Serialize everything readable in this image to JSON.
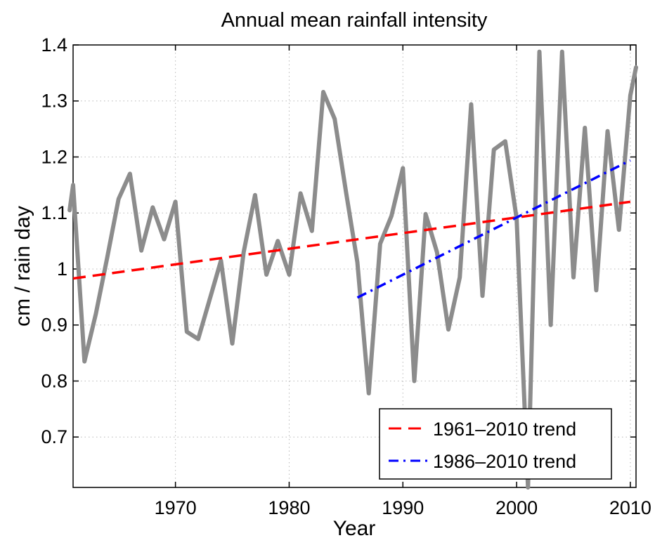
{
  "chart_data": {
    "type": "line",
    "title": "Annual mean rainfall intensity",
    "xlabel": "Year",
    "ylabel": "cm / rain day",
    "xlim": [
      1961,
      2010.5
    ],
    "ylim": [
      0.61,
      1.4
    ],
    "xticks": [
      "1970",
      "1980",
      "1990",
      "2000",
      "2010"
    ],
    "yticks": [
      "0.7",
      "0.8",
      "0.9",
      "1",
      "1.1",
      "1.2",
      "1.3",
      "1.4"
    ],
    "grid": true,
    "legend_position": "bottom-right",
    "series": [
      {
        "color": "#8c8c8c",
        "style": "solid",
        "x": [
          1960.7,
          1961,
          1962,
          1963,
          1964,
          1965,
          1966,
          1967,
          1968,
          1969,
          1970,
          1971,
          1972,
          1973,
          1974,
          1975,
          1976,
          1977,
          1978,
          1979,
          1980,
          1981,
          1982,
          1983,
          1984,
          1985,
          1986,
          1987,
          1988,
          1989,
          1990,
          1991,
          1992,
          1993,
          1994,
          1995,
          1996,
          1997,
          1998,
          1999,
          2000,
          2001,
          2002,
          2003,
          2004,
          2005,
          2006,
          2007,
          2008,
          2009,
          2010,
          2010.5
        ],
        "y": [
          1.105,
          1.15,
          0.835,
          0.92,
          1.02,
          1.125,
          1.17,
          1.033,
          1.11,
          1.053,
          1.12,
          0.888,
          0.875,
          0.945,
          1.015,
          0.867,
          1.03,
          1.132,
          0.99,
          1.05,
          0.99,
          1.135,
          1.068,
          1.316,
          1.268,
          1.137,
          1.012,
          0.778,
          1.045,
          1.095,
          1.18,
          0.8,
          1.098,
          1.03,
          0.892,
          0.985,
          1.294,
          0.952,
          1.213,
          1.228,
          1.09,
          0.61,
          1.388,
          0.9,
          1.388,
          0.985,
          1.252,
          0.962,
          1.246,
          1.07,
          1.31,
          1.36
        ]
      },
      {
        "name": "1961–2010 trend",
        "color": "#ff0000",
        "style": "dashed",
        "x": [
          1961,
          2010
        ],
        "y": [
          0.983,
          1.12
        ]
      },
      {
        "name": "1986–2010 trend",
        "color": "#0000ff",
        "style": "dashdot",
        "x": [
          1986,
          2010
        ],
        "y": [
          0.949,
          1.194
        ]
      }
    ]
  }
}
